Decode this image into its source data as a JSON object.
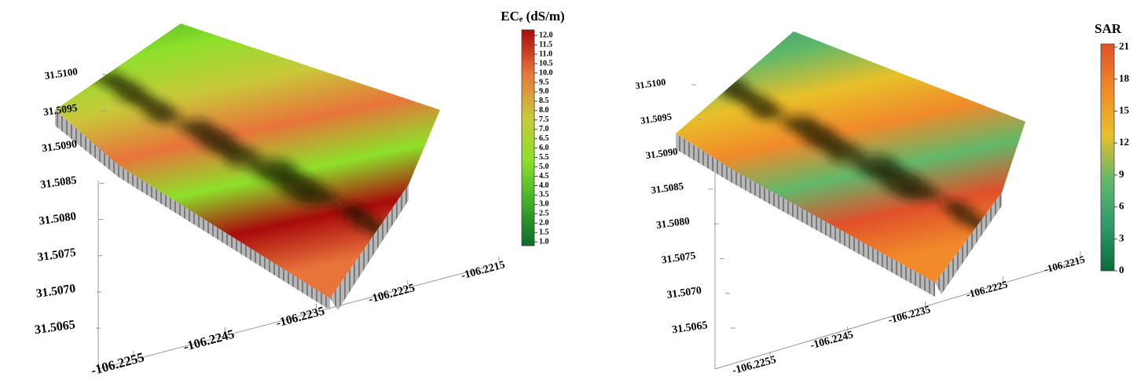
{
  "chart_data": [
    {
      "type": "surface3d",
      "title": "ECₑ (dS/m)",
      "colorscale": [
        "#0b6b2a",
        "#3fae2a",
        "#8ee02a",
        "#c9c83a",
        "#e8743a",
        "#a80a0a"
      ],
      "clim": [
        0.8,
        12.3
      ],
      "cticks": [
        {
          "value": 1,
          "label": "1.0"
        },
        1.5,
        {
          "value": 2,
          "label": "2.0"
        },
        2.5,
        {
          "value": 3,
          "label": "3.0"
        },
        3.5,
        {
          "value": 4,
          "label": "4.0"
        },
        4.5,
        {
          "value": 5,
          "label": "5.0"
        },
        5.5,
        {
          "value": 6,
          "label": "6.0"
        },
        6.5,
        {
          "value": 7,
          "label": "7.0"
        },
        7.5,
        {
          "value": 8,
          "label": "8.0"
        },
        8.5,
        {
          "value": 9,
          "label": "9.0"
        },
        9.5,
        {
          "value": 10,
          "label": "10.0"
        },
        10.5,
        {
          "value": 11,
          "label": "11.0"
        },
        11.5,
        {
          "value": 12,
          "label": "12.0"
        }
      ],
      "xlim": [
        -106.2255,
        -106.2215
      ],
      "xticks": [
        -106.2255,
        -106.2245,
        -106.2235,
        -106.2225,
        -106.2215
      ],
      "ylim": [
        31.5065,
        31.51
      ],
      "yticks": [
        {
          "value": 31.51,
          "label": "31.5100"
        },
        31.5095,
        {
          "value": 31.509,
          "label": "31.5090"
        },
        31.5085,
        {
          "value": 31.508,
          "label": "31.5080"
        },
        31.5075,
        {
          "value": 31.507,
          "label": "31.5070"
        },
        31.5065
      ]
    },
    {
      "type": "surface3d",
      "title": "SAR",
      "colorscale": [
        "#0b6b3a",
        "#2f9a6a",
        "#62b86a",
        "#e8c02a",
        "#f08a2a",
        "#e0502a"
      ],
      "clim": [
        0,
        21.3
      ],
      "cticks": [
        0,
        3,
        6,
        9,
        12,
        15,
        18,
        21
      ],
      "xlim": [
        -106.2255,
        -106.2215
      ],
      "xticks": [
        -106.2255,
        -106.2245,
        -106.2235,
        -106.2225,
        -106.2215
      ],
      "ylim": [
        31.5065,
        31.51
      ],
      "yticks": [
        {
          "value": 31.51,
          "label": "31.5100"
        },
        31.5095,
        {
          "value": 31.509,
          "label": "31.5090"
        },
        31.5085,
        {
          "value": 31.508,
          "label": "31.5080"
        },
        31.5075,
        {
          "value": 31.507,
          "label": "31.5070"
        },
        31.5065
      ]
    }
  ]
}
